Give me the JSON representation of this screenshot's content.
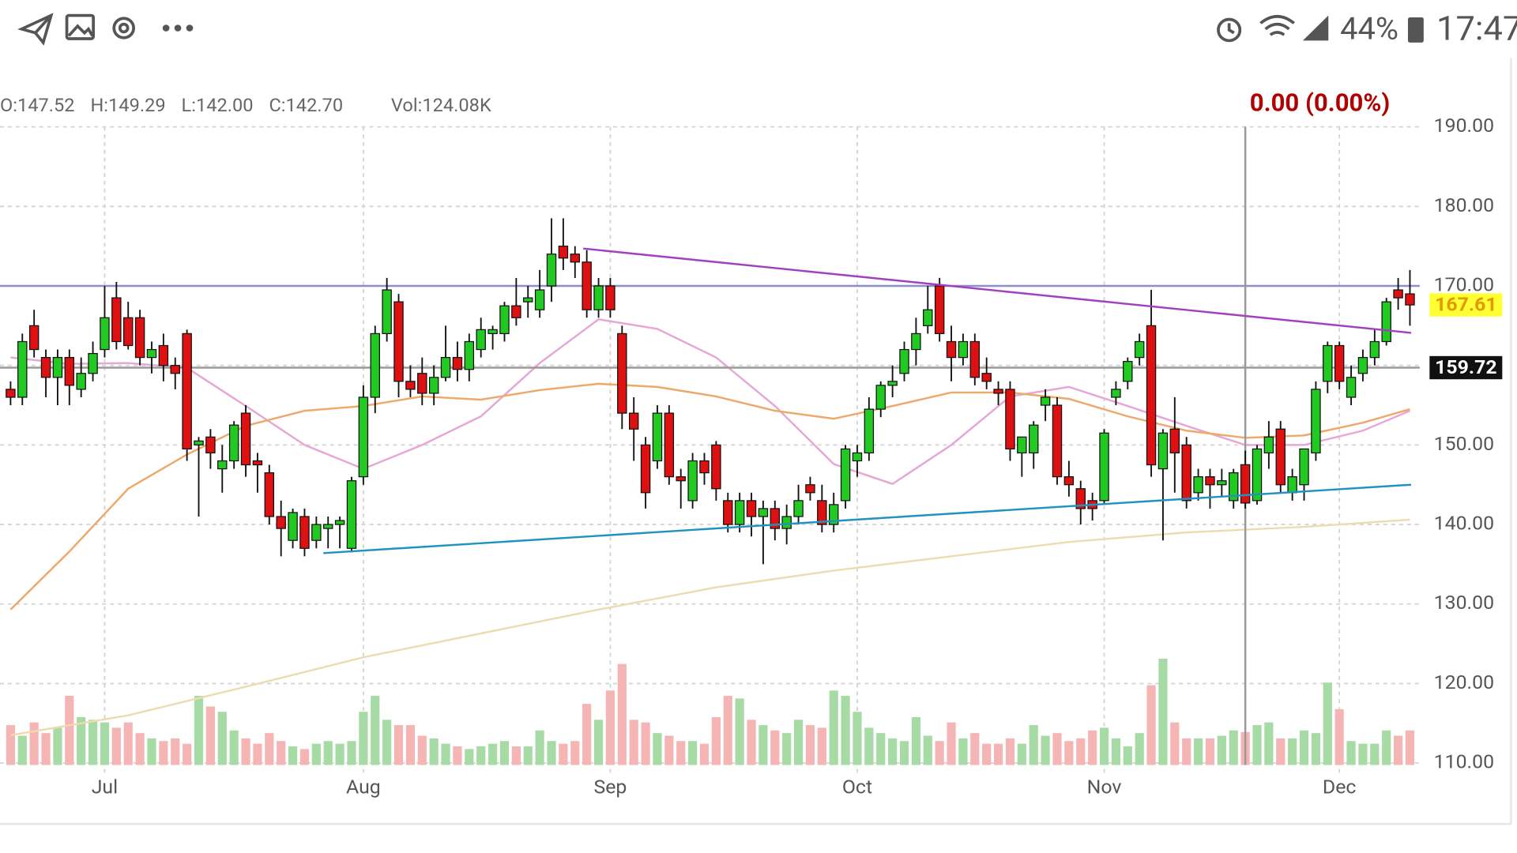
{
  "status_bar": {
    "battery": "44%",
    "time": "17:47"
  },
  "chart_data": {
    "type": "candlestick",
    "header": [
      "O:147.52",
      "H:149.29",
      "L:142.00",
      "C:142.70"
    ],
    "volume_label": "Vol:124.08K",
    "change": "0.00 (0.00%)",
    "xlim": [
      -0.9,
      119.5
    ],
    "ylim": [
      110,
      194.4
    ],
    "yticks": [
      {
        "value": 110,
        "label": "110.00"
      },
      {
        "value": 120,
        "label": "120.00"
      },
      {
        "value": 130,
        "label": "130.00"
      },
      {
        "value": 140,
        "label": "140.00"
      },
      {
        "value": 150,
        "label": "150.00"
      },
      {
        "value": 160,
        "label": "160.00"
      },
      {
        "value": 170,
        "label": "170.00"
      },
      {
        "value": 180,
        "label": "180.00"
      },
      {
        "value": 190,
        "label": "190.00"
      }
    ],
    "xticks": [
      {
        "value": 8,
        "label": "Jul"
      },
      {
        "value": 30,
        "label": "Aug"
      },
      {
        "value": 51,
        "label": "Sep"
      },
      {
        "value": 72,
        "label": "Oct"
      },
      {
        "value": 93,
        "label": "Nov"
      },
      {
        "value": 113,
        "label": "Dec"
      }
    ],
    "grid": true,
    "up_color": "#22c922",
    "down_color": "#dd1111",
    "volume_up_color": "#a6dba6",
    "volume_down_color": "#f5b5b5",
    "candles": [
      [
        157,
        158,
        155,
        156
      ],
      [
        156,
        164,
        155,
        163
      ],
      [
        165,
        167,
        161,
        162
      ],
      [
        161,
        162,
        156,
        158.5
      ],
      [
        158.5,
        162,
        155,
        161
      ],
      [
        161,
        162,
        155,
        157.5
      ],
      [
        157,
        161,
        156,
        159
      ],
      [
        159,
        163,
        158,
        161.5
      ],
      [
        162,
        170,
        161,
        166
      ],
      [
        168.5,
        170.5,
        162,
        163
      ],
      [
        166,
        168,
        162,
        162.5
      ],
      [
        166,
        167,
        160,
        161
      ],
      [
        161,
        163,
        159,
        162
      ],
      [
        162.5,
        164,
        158,
        160
      ],
      [
        160,
        161,
        157,
        159
      ],
      [
        164,
        164.5,
        148,
        149.5
      ],
      [
        150,
        151,
        141,
        150.5
      ],
      [
        151,
        152,
        147,
        149
      ],
      [
        147,
        150,
        144,
        148
      ],
      [
        148,
        153,
        147,
        152.5
      ],
      [
        154,
        155,
        146,
        147.5
      ],
      [
        148,
        149,
        144,
        147.5
      ],
      [
        146.5,
        147.5,
        140,
        141
      ],
      [
        141,
        143,
        136,
        139.5
      ],
      [
        138,
        142,
        137,
        141.5
      ],
      [
        141,
        142,
        136,
        137
      ],
      [
        138,
        141,
        137,
        140
      ],
      [
        139.5,
        141,
        137,
        140
      ],
      [
        140,
        141,
        137,
        140.5
      ],
      [
        137,
        146,
        136.5,
        145.5
      ],
      [
        146,
        157.5,
        145,
        156
      ],
      [
        156,
        165,
        154,
        164
      ],
      [
        164,
        171,
        163,
        169.5
      ],
      [
        168,
        169,
        156,
        158
      ],
      [
        158,
        160,
        156,
        157
      ],
      [
        159,
        161,
        155,
        156.5
      ],
      [
        156.5,
        160,
        155,
        158.5
      ],
      [
        158.5,
        165,
        158,
        161
      ],
      [
        161,
        163,
        158,
        159.5
      ],
      [
        159.5,
        164,
        158,
        163
      ],
      [
        162,
        166,
        161,
        164.5
      ],
      [
        164,
        165,
        162,
        164.5
      ],
      [
        164,
        168,
        163,
        167.5
      ],
      [
        167.5,
        171,
        165,
        166
      ],
      [
        168,
        170,
        166,
        168.5
      ],
      [
        167,
        172,
        166,
        169.5
      ],
      [
        170,
        178.5,
        168,
        174
      ],
      [
        175,
        178.5,
        172,
        173.5
      ],
      [
        174,
        175,
        171,
        173
      ],
      [
        173,
        174.5,
        166,
        167
      ],
      [
        167,
        171,
        166,
        170
      ],
      [
        170,
        171,
        166,
        167
      ],
      [
        164,
        165,
        152,
        154
      ],
      [
        154,
        156,
        148,
        152
      ],
      [
        150,
        151,
        142,
        144
      ],
      [
        148,
        155,
        147,
        154
      ],
      [
        154,
        155,
        145,
        146
      ],
      [
        146,
        147,
        142,
        145.5
      ],
      [
        143,
        149,
        142,
        148
      ],
      [
        148,
        149,
        145,
        146.5
      ],
      [
        150,
        150.5,
        143,
        144.5
      ],
      [
        143,
        144,
        139,
        140
      ],
      [
        140,
        144,
        139,
        143
      ],
      [
        143,
        144,
        138.5,
        141
      ],
      [
        141,
        143,
        135,
        142
      ],
      [
        142,
        143,
        138,
        139.5
      ],
      [
        139.5,
        142.5,
        137.5,
        141
      ],
      [
        141,
        145,
        140,
        143
      ],
      [
        145,
        146,
        143,
        144
      ],
      [
        143,
        145,
        139,
        140
      ],
      [
        140,
        144,
        139,
        142.5
      ],
      [
        143,
        150,
        142,
        149.5
      ],
      [
        148,
        150,
        146,
        149
      ],
      [
        149,
        156,
        148,
        154.5
      ],
      [
        154.5,
        158,
        153.5,
        157.5
      ],
      [
        157.5,
        160,
        156,
        158
      ],
      [
        159,
        163,
        158,
        162
      ],
      [
        162,
        166,
        160,
        164
      ],
      [
        165,
        170,
        164,
        167
      ],
      [
        170,
        171,
        163,
        164
      ],
      [
        163,
        165,
        158,
        161
      ],
      [
        161,
        164,
        160,
        163
      ],
      [
        163,
        164,
        157.5,
        158.5
      ],
      [
        159,
        161,
        157,
        158
      ],
      [
        157,
        158,
        155,
        156.5
      ],
      [
        157,
        158,
        148,
        149.5
      ],
      [
        149,
        151,
        146,
        151
      ],
      [
        149,
        153,
        147,
        152.5
      ],
      [
        155,
        157,
        153,
        156
      ],
      [
        155,
        156,
        145,
        146
      ],
      [
        146,
        148,
        143.5,
        145
      ],
      [
        144.5,
        145.5,
        140,
        142
      ],
      [
        143,
        144,
        140.5,
        142
      ],
      [
        143,
        152,
        142.5,
        151.5
      ],
      [
        156,
        158,
        155,
        157
      ],
      [
        158,
        161,
        157,
        160.5
      ],
      [
        161,
        164,
        160,
        163
      ],
      [
        165,
        169.5,
        146,
        147.5
      ],
      [
        147,
        152,
        138,
        151.5
      ],
      [
        152,
        156,
        144,
        149
      ],
      [
        150,
        151,
        142,
        143
      ],
      [
        144,
        147,
        143,
        146
      ],
      [
        146,
        147,
        142,
        145
      ],
      [
        145,
        147,
        143.5,
        145.5
      ],
      [
        143,
        147,
        142,
        146.5
      ],
      [
        147.52,
        149.29,
        142,
        142.7
      ],
      [
        143,
        150,
        142.5,
        149.5
      ],
      [
        149,
        153,
        147,
        151
      ],
      [
        152,
        153,
        144,
        145
      ],
      [
        144,
        147,
        143,
        146
      ],
      [
        145,
        149,
        143,
        149.5
      ],
      [
        149,
        158,
        148,
        157
      ],
      [
        158,
        163,
        156.5,
        162.5
      ],
      [
        162.5,
        163,
        157,
        158
      ],
      [
        156,
        160,
        155,
        158.5
      ],
      [
        159,
        162,
        158,
        161
      ],
      [
        161,
        164.5,
        160,
        163
      ],
      [
        163,
        168.5,
        162.5,
        168
      ],
      [
        169.5,
        171,
        167,
        168.5
      ],
      [
        169,
        172,
        165,
        167.61
      ]
    ],
    "volume": [
      150,
      110,
      160,
      120,
      140,
      260,
      180,
      170,
      160,
      140,
      160,
      120,
      100,
      90,
      100,
      80,
      260,
      220,
      200,
      130,
      100,
      80,
      120,
      90,
      70,
      60,
      80,
      90,
      80,
      90,
      200,
      260,
      170,
      150,
      150,
      110,
      100,
      80,
      70,
      60,
      70,
      80,
      90,
      70,
      70,
      130,
      90,
      80,
      90,
      230,
      170,
      280,
      380,
      170,
      160,
      120,
      110,
      90,
      90,
      80,
      180,
      260,
      250,
      170,
      150,
      130,
      120,
      170,
      150,
      140,
      280,
      260,
      200,
      140,
      120,
      100,
      90,
      180,
      110,
      90,
      160,
      100,
      120,
      80,
      80,
      100,
      80,
      150,
      110,
      120,
      90,
      100,
      130,
      140,
      100,
      70,
      120,
      300,
      400,
      160,
      100,
      100,
      100,
      110,
      130,
      124.08,
      150,
      160,
      100,
      100,
      130,
      120,
      310,
      210,
      90,
      80,
      80,
      130,
      110,
      130
    ],
    "crosshair_index": 105,
    "moving_averages": [
      {
        "color": "#e6a6d6",
        "x": [
          0,
          5,
          10,
          15,
          20,
          25,
          30,
          35,
          40,
          45,
          50,
          55,
          60,
          65,
          70,
          75,
          80,
          85,
          90,
          95,
          100,
          105,
          110,
          115,
          119
        ],
        "values": [
          161,
          160.2,
          160.3,
          159.7,
          154.9,
          150,
          147,
          150,
          153.6,
          160.3,
          165.8,
          164.6,
          161,
          154.9,
          147.6,
          145.1,
          150,
          156.1,
          157.3,
          154.9,
          152.4,
          150,
          150,
          151.8,
          154.3
        ]
      },
      {
        "color": "#eda86a",
        "x": [
          0,
          5,
          10,
          15,
          20,
          25,
          30,
          35,
          40,
          45,
          50,
          55,
          60,
          65,
          70,
          75,
          80,
          85,
          90,
          95,
          100,
          105,
          110,
          115,
          119
        ],
        "values": [
          129.3,
          136.6,
          144.5,
          148.8,
          152.4,
          154.3,
          154.9,
          156.1,
          155.7,
          156.9,
          157.7,
          157.3,
          156.1,
          154.3,
          153.3,
          154.9,
          156.6,
          156.6,
          155.8,
          153.6,
          151.8,
          150.9,
          151.2,
          152.8,
          154.5
        ]
      },
      {
        "color": "#ecdcb0",
        "x": [
          0,
          10,
          20,
          30,
          40,
          50,
          60,
          70,
          80,
          90,
          100,
          110,
          119
        ],
        "values": [
          113.5,
          116,
          119.6,
          123.3,
          126.3,
          129.3,
          132.1,
          134.2,
          136,
          137.8,
          139,
          139.7,
          140.6
        ]
      }
    ],
    "trendlines": [
      {
        "color": "#a23fc0",
        "x": [
          48.7,
          119.1
        ],
        "values": [
          174.7,
          164.1
        ]
      },
      {
        "color": "#1f93c0",
        "x": [
          26.6,
          119.1
        ],
        "values": [
          136.4,
          145
        ]
      }
    ],
    "hlines": [
      {
        "value": 170,
        "color": "#8e8ec8",
        "show_label": false
      },
      {
        "value": 159.72,
        "color": "#9a9a9a",
        "show_label": true
      }
    ]
  }
}
